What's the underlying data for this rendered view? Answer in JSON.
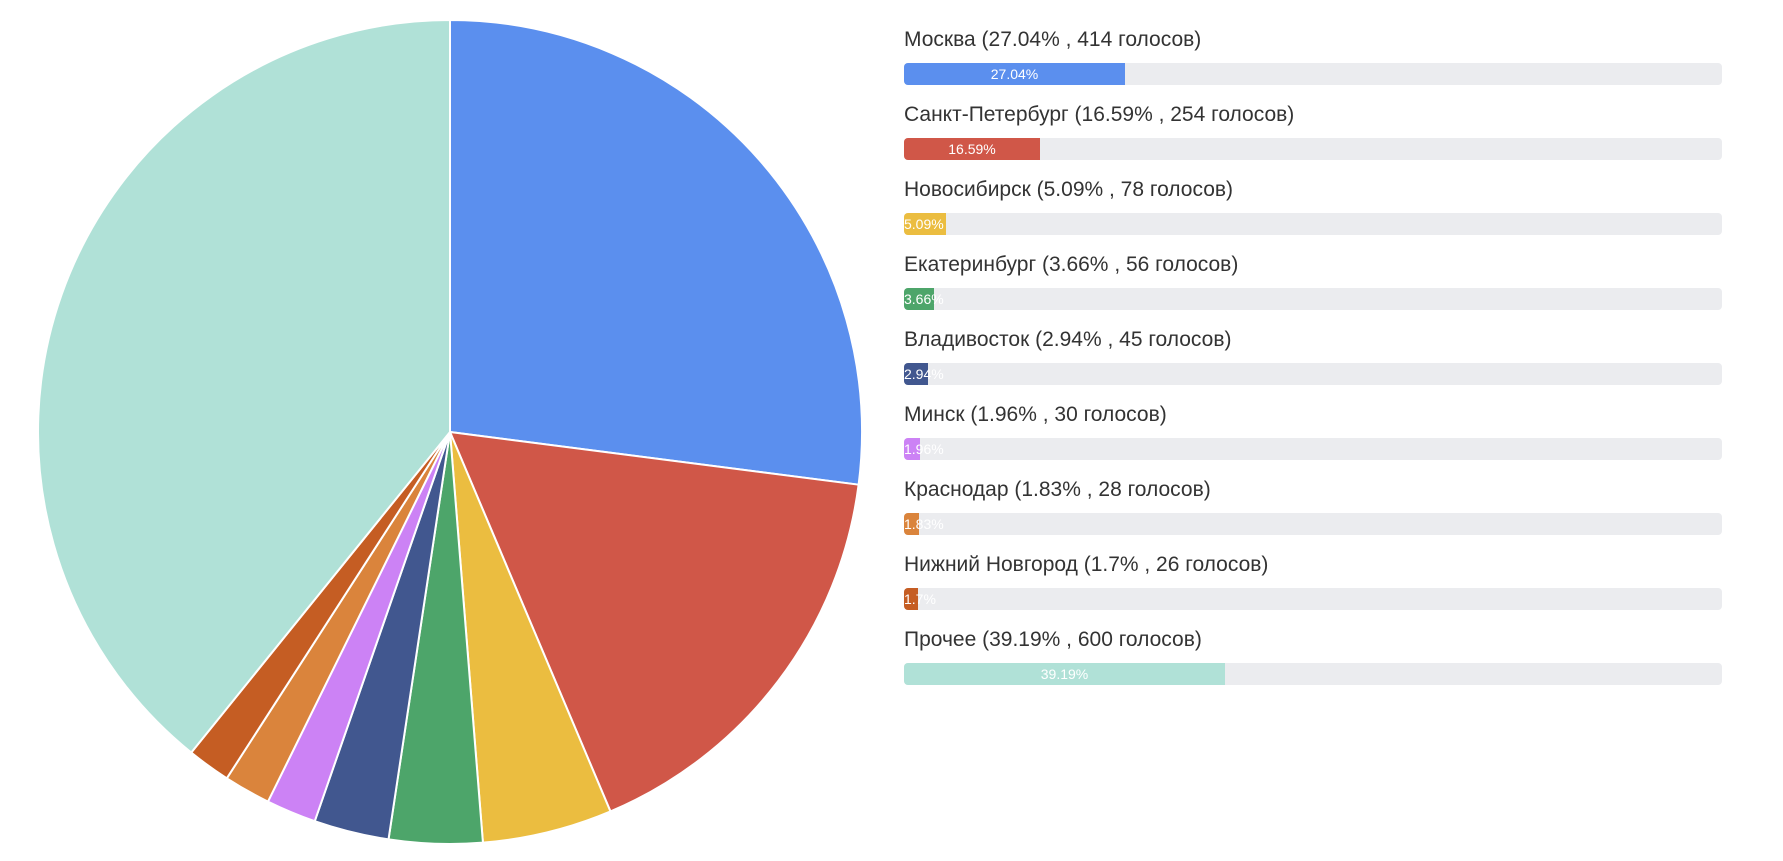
{
  "chart_data": {
    "type": "pie",
    "title": "",
    "slices": [
      {
        "name": "Москва",
        "value": 414,
        "percent": 27.04,
        "label": "Москва (27.04% , 414 голосов)",
        "bar_text": "27.04%",
        "color": "#5b8fee"
      },
      {
        "name": "Санкт-Петербург",
        "value": 254,
        "percent": 16.59,
        "label": "Санкт-Петербург (16.59% , 254 голосов)",
        "bar_text": "16.59%",
        "color": "#d05748"
      },
      {
        "name": "Новосибирск",
        "value": 78,
        "percent": 5.09,
        "label": "Новосибирск (5.09% , 78 голосов)",
        "bar_text": "5.09%",
        "color": "#ebbd40"
      },
      {
        "name": "Екатеринбург",
        "value": 56,
        "percent": 3.66,
        "label": "Екатеринбург (3.66% , 56 голосов)",
        "bar_text": "3.66%",
        "color": "#4da56a"
      },
      {
        "name": "Владивосток",
        "value": 45,
        "percent": 2.94,
        "label": "Владивосток (2.94% , 45 голосов)",
        "bar_text": "2.94%",
        "color": "#41578f"
      },
      {
        "name": "Минск",
        "value": 30,
        "percent": 1.96,
        "label": "Минск (1.96% , 30 голосов)",
        "bar_text": "1.96%",
        "color": "#cc82f5"
      },
      {
        "name": "Краснодар",
        "value": 28,
        "percent": 1.83,
        "label": "Краснодар (1.83% , 28 голосов)",
        "bar_text": "1.83%",
        "color": "#da843c"
      },
      {
        "name": "Нижний Новгород",
        "value": 26,
        "percent": 1.7,
        "label": "Нижний Новгород (1.7% , 26 голосов)",
        "bar_text": "1.7%",
        "color": "#c55d23"
      },
      {
        "name": "Прочее",
        "value": 600,
        "percent": 39.19,
        "label": "Прочее (39.19% , 600 голосов)",
        "bar_text": "39.19%",
        "color": "#b0e1d7"
      }
    ]
  }
}
